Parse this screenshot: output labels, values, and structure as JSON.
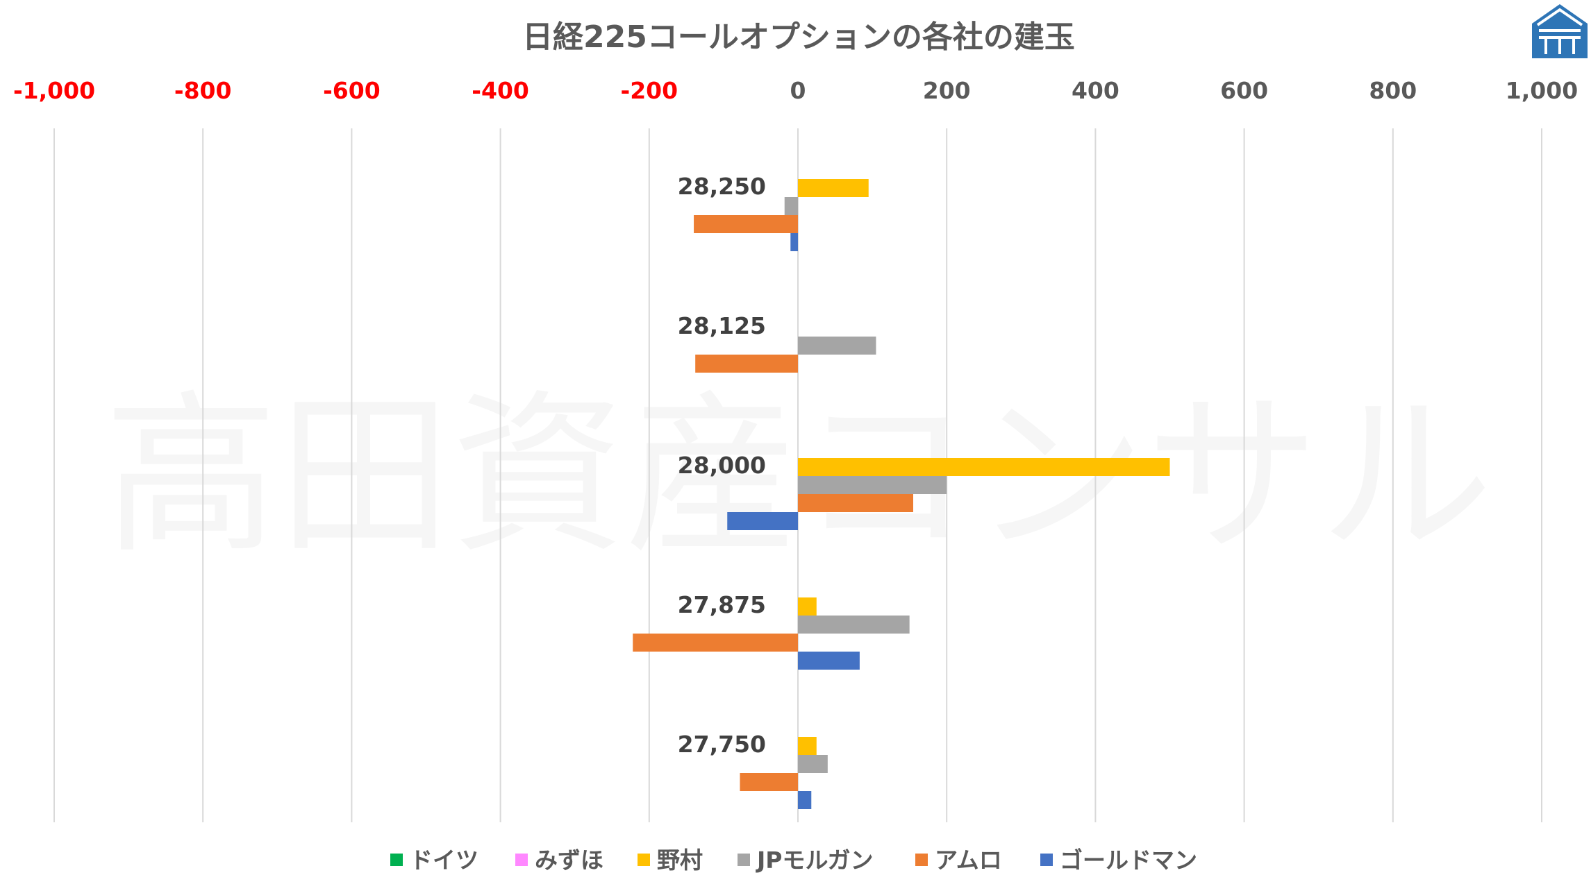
{
  "watermark": "高田資産コンサル",
  "logo": {
    "name": "takata-logo",
    "color": "#2e75b6"
  },
  "chart_data": {
    "type": "bar",
    "orientation": "horizontal",
    "title": "日経225コールオプションの各社の建玉",
    "xlim": [
      -1000,
      1000
    ],
    "x_ticks": [
      -1000,
      -800,
      -600,
      -400,
      -200,
      0,
      200,
      400,
      600,
      800,
      1000
    ],
    "x_tick_labels": [
      "-1,000",
      "-800",
      "-600",
      "-400",
      "-200",
      "0",
      "200",
      "400",
      "600",
      "800",
      "1,000"
    ],
    "negative_tick_color": "#ff0000",
    "positive_tick_color": "#595959",
    "grid": true,
    "legend_position": "bottom",
    "categories": [
      "28,250",
      "28,125",
      "28,000",
      "27,875",
      "27,750"
    ],
    "series": [
      {
        "name": "ドイツ",
        "color": "#00b050",
        "values": [
          0,
          0,
          0,
          0,
          0
        ]
      },
      {
        "name": "みずほ",
        "color": "#ff88ff",
        "values": [
          0,
          0,
          0,
          0,
          0
        ]
      },
      {
        "name": "野村",
        "color": "#ffc000",
        "values": [
          95,
          0,
          500,
          25,
          25
        ]
      },
      {
        "name": "JPモルガン",
        "color": "#a5a5a5",
        "values": [
          -18,
          105,
          200,
          150,
          40
        ]
      },
      {
        "name": "アムロ",
        "color": "#ed7d31",
        "values": [
          -140,
          -138,
          155,
          -222,
          -78
        ]
      },
      {
        "name": "ゴールドマン",
        "color": "#4472c4",
        "values": [
          -10,
          0,
          -95,
          83,
          18
        ]
      }
    ]
  }
}
